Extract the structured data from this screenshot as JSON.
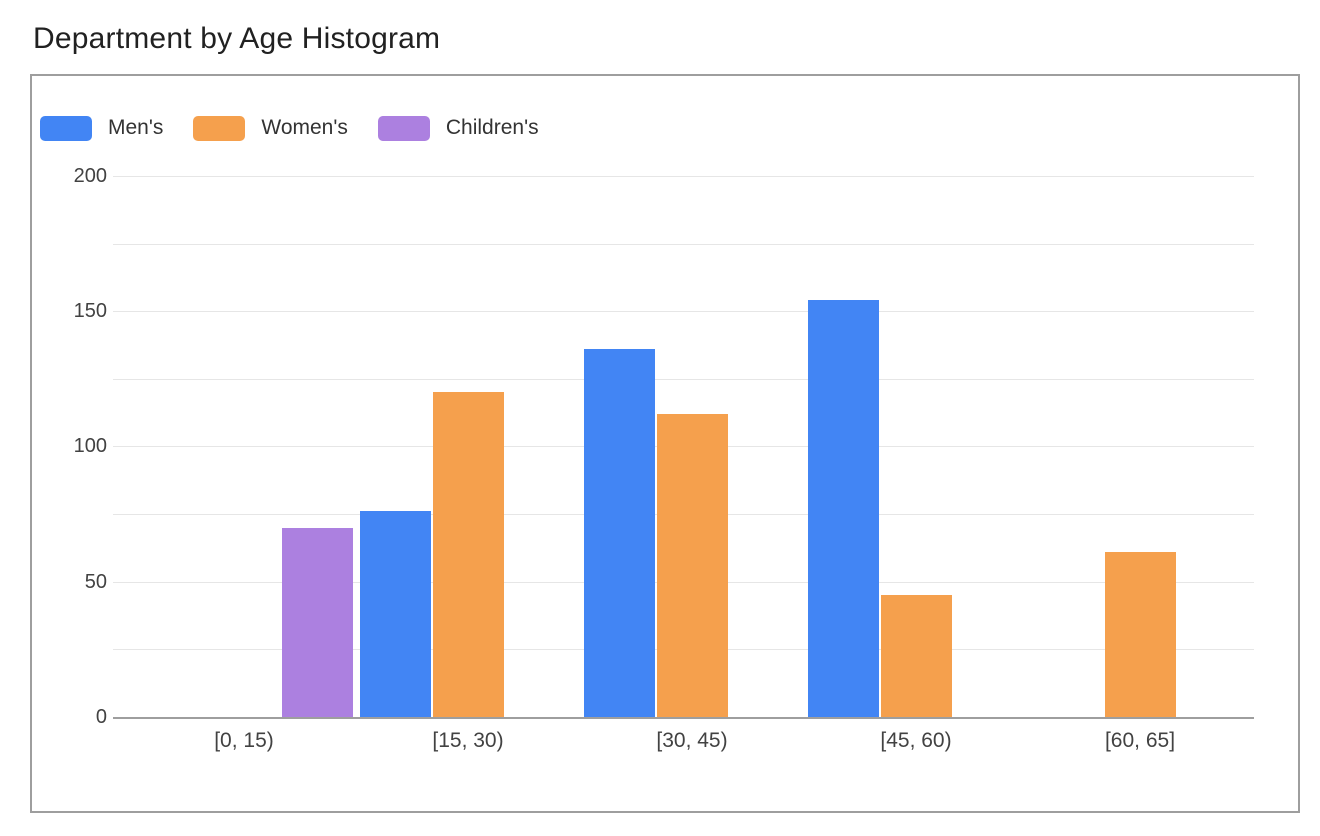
{
  "page": {
    "title": "Department by Age Histogram"
  },
  "chart_data": {
    "type": "bar",
    "title": "Department by Age Histogram",
    "categories": [
      "[0, 15)",
      "[15, 30)",
      "[30, 45)",
      "[45, 60)",
      "[60, 65]"
    ],
    "series": [
      {
        "name": "Men's",
        "color": "#4285F4",
        "values": [
          0,
          76,
          136,
          154,
          0
        ]
      },
      {
        "name": "Women's",
        "color": "#F5A04D",
        "values": [
          0,
          120,
          112,
          45,
          61
        ]
      },
      {
        "name": "Children's",
        "color": "#AC80E0",
        "values": [
          70,
          0,
          0,
          0,
          0
        ]
      }
    ],
    "xlabel": "",
    "ylabel": "",
    "ylim": [
      0,
      200
    ],
    "ytick_labels": [
      "0",
      "50",
      "100",
      "150",
      "200"
    ],
    "ytick_values": [
      0,
      50,
      100,
      150,
      200
    ],
    "gridline_step": 25,
    "grid": true,
    "legend_position": "top-left"
  },
  "colors": {
    "background": "#ffffff",
    "border": "#9e9e9e",
    "gridline": "#e6e6e6",
    "baseline": "#9e9e9e",
    "axis_text": "#424242",
    "title_text": "#212121",
    "legend_text": "#333333"
  }
}
